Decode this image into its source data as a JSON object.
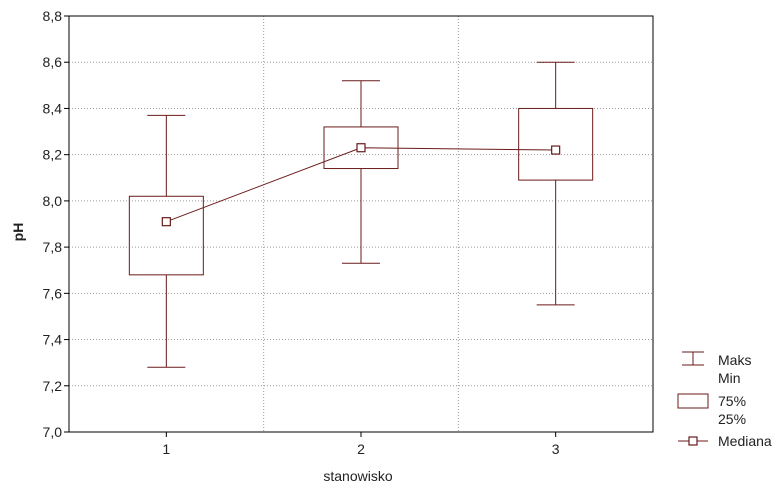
{
  "chart_data": {
    "type": "box",
    "xlabel": "stanowisko",
    "ylabel": "pH",
    "categories": [
      "1",
      "2",
      "3"
    ],
    "ylim": [
      7.0,
      8.8
    ],
    "yticks": [
      "7,0",
      "7,2",
      "7,4",
      "7,6",
      "7,8",
      "8,0",
      "8,2",
      "8,4",
      "8,6",
      "8,8"
    ],
    "grid": true,
    "boxes": [
      {
        "category": "1",
        "min": 7.28,
        "q1": 7.68,
        "median": 7.91,
        "q3": 8.02,
        "max": 8.37
      },
      {
        "category": "2",
        "min": 7.73,
        "q1": 8.14,
        "median": 8.23,
        "q3": 8.32,
        "max": 8.52
      },
      {
        "category": "3",
        "min": 7.55,
        "q1": 8.09,
        "median": 8.22,
        "q3": 8.4,
        "max": 8.6
      }
    ],
    "legend": {
      "position": "bottom-right",
      "whisker": [
        "Maks",
        "Min"
      ],
      "box": [
        "75%",
        "25%"
      ],
      "median": "Mediana"
    },
    "colors": {
      "mark": "#6b1a1a",
      "grid": "#9a9a9a",
      "axis": "#000000"
    }
  }
}
